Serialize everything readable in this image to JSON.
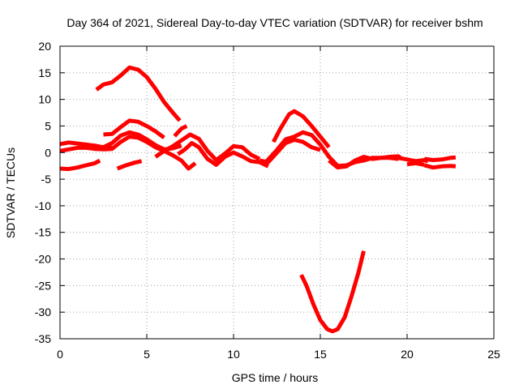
{
  "chart_data": {
    "type": "line",
    "title": "Day 364 of 2021, Sidereal Day-to-day VTEC variation (SDTVAR) for receiver bshm",
    "xlabel": "GPS time / hours",
    "ylabel": "SDTVAR / TECUs",
    "xlim": [
      0,
      25
    ],
    "ylim": [
      -35,
      20
    ],
    "xticks": [
      0,
      5,
      10,
      15,
      20,
      25
    ],
    "yticks": [
      20,
      15,
      10,
      5,
      0,
      -5,
      -10,
      -15,
      -20,
      -25,
      -30,
      -35
    ],
    "grid": true,
    "color": "#ff0000",
    "series": [
      {
        "name": "arc-early-low",
        "points": [
          [
            0.0,
            -3.0
          ],
          [
            0.5,
            -3.1
          ],
          [
            1.0,
            -2.8
          ],
          [
            1.5,
            -2.4
          ],
          [
            2.0,
            -2.0
          ],
          [
            2.3,
            -1.5
          ]
        ]
      },
      {
        "name": "arc-early-band-a",
        "points": [
          [
            0.0,
            1.6
          ],
          [
            0.5,
            1.9
          ],
          [
            1.0,
            1.7
          ],
          [
            1.5,
            1.5
          ],
          [
            2.0,
            1.3
          ],
          [
            2.5,
            1.0
          ],
          [
            3.0,
            0.9
          ]
        ]
      },
      {
        "name": "arc-early-band-b",
        "points": [
          [
            0.0,
            0.3
          ],
          [
            0.5,
            0.6
          ],
          [
            1.0,
            0.9
          ],
          [
            1.5,
            0.9
          ],
          [
            2.0,
            0.7
          ],
          [
            2.5,
            0.6
          ],
          [
            3.0,
            0.7
          ],
          [
            3.5,
            2.0
          ],
          [
            4.0,
            3.0
          ],
          [
            4.5,
            2.8
          ],
          [
            5.0,
            2.0
          ],
          [
            5.5,
            1.0
          ],
          [
            6.0,
            0.3
          ],
          [
            6.5,
            -0.5
          ],
          [
            7.0,
            -1.5
          ],
          [
            7.4,
            -3.0
          ],
          [
            7.8,
            -2.0
          ]
        ]
      },
      {
        "name": "arc-peak-16",
        "points": [
          [
            2.1,
            11.8
          ],
          [
            2.5,
            12.8
          ],
          [
            3.0,
            13.2
          ],
          [
            3.5,
            14.5
          ],
          [
            4.0,
            16.0
          ],
          [
            4.5,
            15.6
          ],
          [
            5.0,
            14.2
          ],
          [
            5.5,
            12.0
          ],
          [
            6.0,
            9.5
          ],
          [
            6.5,
            7.5
          ],
          [
            6.9,
            6.0
          ]
        ]
      },
      {
        "name": "arc-peak-6",
        "points": [
          [
            2.5,
            3.4
          ],
          [
            3.0,
            3.5
          ],
          [
            3.5,
            4.8
          ],
          [
            4.0,
            6.0
          ],
          [
            4.5,
            5.8
          ],
          [
            5.0,
            5.0
          ],
          [
            5.5,
            4.0
          ],
          [
            6.0,
            2.8
          ]
        ]
      },
      {
        "name": "arc-peak-3-left",
        "points": [
          [
            2.5,
            1.0
          ],
          [
            3.0,
            1.8
          ],
          [
            3.5,
            3.2
          ],
          [
            4.0,
            3.8
          ],
          [
            4.5,
            3.4
          ],
          [
            5.0,
            2.5
          ],
          [
            5.5,
            1.4
          ],
          [
            6.0,
            0.6
          ],
          [
            6.5,
            0.8
          ],
          [
            7.0,
            1.3
          ]
        ]
      },
      {
        "name": "arc-mid-low",
        "points": [
          [
            3.3,
            -3.0
          ],
          [
            3.8,
            -2.4
          ],
          [
            4.3,
            -1.9
          ],
          [
            4.7,
            -1.6
          ]
        ]
      },
      {
        "name": "arc-wavy-a",
        "points": [
          [
            5.5,
            -0.8
          ],
          [
            6.0,
            0.3
          ],
          [
            6.5,
            1.2
          ],
          [
            7.0,
            2.3
          ],
          [
            7.5,
            3.4
          ],
          [
            8.0,
            2.6
          ],
          [
            8.5,
            0.3
          ],
          [
            9.0,
            -1.4
          ],
          [
            9.5,
            -0.2
          ],
          [
            10.0,
            1.2
          ],
          [
            10.5,
            1.0
          ],
          [
            11.0,
            -0.4
          ],
          [
            11.5,
            -1.2
          ]
        ]
      },
      {
        "name": "arc-wavy-b",
        "points": [
          [
            6.8,
            -0.3
          ],
          [
            7.2,
            0.6
          ],
          [
            7.6,
            1.8
          ],
          [
            8.0,
            1.0
          ],
          [
            8.5,
            -1.2
          ],
          [
            9.0,
            -2.3
          ],
          [
            9.5,
            -0.8
          ],
          [
            10.0,
            0.0
          ],
          [
            10.5,
            -0.7
          ],
          [
            11.0,
            -1.6
          ],
          [
            11.5,
            -1.8
          ],
          [
            12.0,
            -2.6
          ]
        ]
      },
      {
        "name": "arc-small-hook",
        "points": [
          [
            6.6,
            3.1
          ],
          [
            7.0,
            4.5
          ],
          [
            7.3,
            5.0
          ]
        ]
      },
      {
        "name": "arc-midday",
        "points": [
          [
            11.5,
            -1.5
          ],
          [
            12.0,
            -1.8
          ],
          [
            12.5,
            0.0
          ],
          [
            13.0,
            1.8
          ],
          [
            13.5,
            2.4
          ],
          [
            14.0,
            2.0
          ],
          [
            14.5,
            1.0
          ],
          [
            15.0,
            0.5
          ]
        ]
      },
      {
        "name": "arc-peak-8",
        "points": [
          [
            12.3,
            2.0
          ],
          [
            12.7,
            4.5
          ],
          [
            13.2,
            7.2
          ],
          [
            13.5,
            7.8
          ],
          [
            14.0,
            6.8
          ],
          [
            14.5,
            5.0
          ],
          [
            15.0,
            3.0
          ],
          [
            15.5,
            1.0
          ]
        ]
      },
      {
        "name": "arc-peak-4",
        "points": [
          [
            11.8,
            -2.0
          ],
          [
            12.5,
            0.5
          ],
          [
            13.0,
            2.5
          ],
          [
            13.5,
            3.0
          ],
          [
            14.0,
            3.8
          ],
          [
            14.5,
            3.3
          ],
          [
            15.0,
            1.5
          ],
          [
            15.5,
            -0.8
          ],
          [
            16.0,
            -2.5
          ],
          [
            16.5,
            -2.4
          ],
          [
            17.0,
            -1.8
          ],
          [
            17.5,
            -1.5
          ],
          [
            18.0,
            -1.0
          ],
          [
            18.5,
            -1.0
          ],
          [
            19.0,
            -0.8
          ],
          [
            19.5,
            -0.7
          ],
          [
            19.7,
            -1.2
          ]
        ]
      },
      {
        "name": "arc-trough-33",
        "points": [
          [
            13.9,
            -23.0
          ],
          [
            14.2,
            -25.0
          ],
          [
            14.6,
            -28.5
          ],
          [
            15.0,
            -31.5
          ],
          [
            15.4,
            -33.2
          ],
          [
            15.7,
            -33.6
          ],
          [
            16.0,
            -33.2
          ],
          [
            16.4,
            -31.0
          ],
          [
            16.8,
            -27.0
          ],
          [
            17.2,
            -22.5
          ],
          [
            17.5,
            -18.5
          ]
        ]
      },
      {
        "name": "arc-late-a",
        "points": [
          [
            15.5,
            -1.5
          ],
          [
            16.0,
            -2.8
          ],
          [
            16.5,
            -2.6
          ],
          [
            17.0,
            -1.5
          ],
          [
            17.5,
            -0.8
          ],
          [
            18.0,
            -1.2
          ],
          [
            18.5,
            -1.0
          ],
          [
            19.0,
            -1.0
          ],
          [
            19.5,
            -1.2
          ]
        ]
      },
      {
        "name": "arc-late-b",
        "points": [
          [
            19.5,
            -1.0
          ],
          [
            20.0,
            -1.3
          ],
          [
            20.5,
            -1.6
          ],
          [
            21.0,
            -1.4
          ],
          [
            21.2,
            -1.7
          ]
        ]
      },
      {
        "name": "arc-late-c",
        "points": [
          [
            20.0,
            -2.2
          ],
          [
            20.5,
            -2.0
          ],
          [
            21.0,
            -2.3
          ]
        ]
      },
      {
        "name": "arc-late-d",
        "points": [
          [
            21.0,
            -2.4
          ],
          [
            21.5,
            -2.8
          ],
          [
            22.0,
            -2.6
          ],
          [
            22.5,
            -2.5
          ],
          [
            22.8,
            -2.6
          ]
        ]
      },
      {
        "name": "arc-late-e",
        "points": [
          [
            21.0,
            -1.2
          ],
          [
            21.5,
            -1.4
          ],
          [
            22.0,
            -1.3
          ],
          [
            22.5,
            -1.0
          ],
          [
            22.8,
            -0.9
          ]
        ]
      }
    ]
  }
}
